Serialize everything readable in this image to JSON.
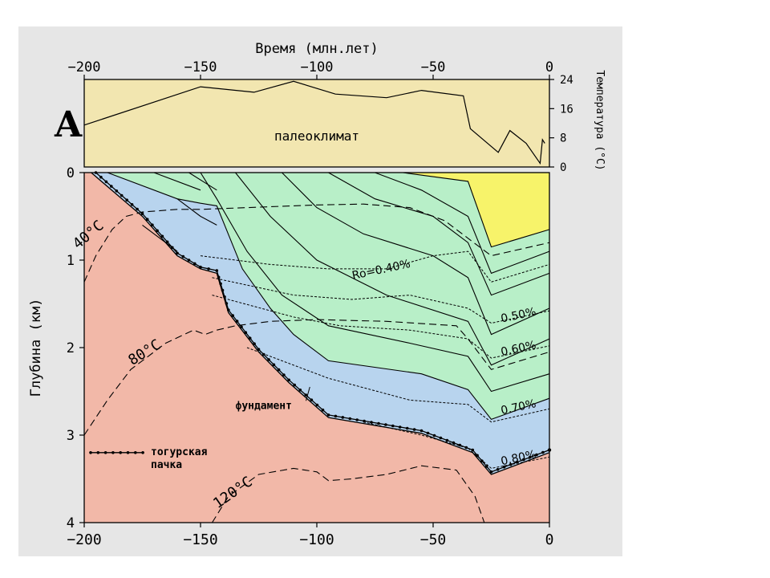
{
  "panel_letter": "A",
  "colors": {
    "frame_bg": "#e6e6e6",
    "paleoclimate_bg": "#f2e6b0",
    "basement": "#f2b8a8",
    "immature_zone": "#b8d4ee",
    "oil_window": "#b8efc8",
    "gas_zone": "#f7f36a",
    "line": "#000000"
  },
  "chart_data": [
    {
      "type": "line",
      "name": "paleoclimate",
      "title": "палеоклимат",
      "xlabel": "Время (млн.лет)",
      "ylabel": "Температура (°C)",
      "xlim": [
        -200,
        0
      ],
      "ylim": [
        0,
        24
      ],
      "x_ticks": [
        -200,
        -150,
        -100,
        -50,
        0
      ],
      "x_tick_labels": [
        "−200",
        "−150",
        "−100",
        "−50",
        "0"
      ],
      "y_ticks": [
        0,
        8,
        16,
        24
      ],
      "y_tick_labels": [
        "0",
        "8",
        "16",
        "24"
      ],
      "series": [
        {
          "points": [
            [
              -200,
              11.5
            ],
            [
              -150,
              22
            ],
            [
              -127,
              20.5
            ],
            [
              -110,
              23.5
            ],
            [
              -92,
              20
            ],
            [
              -70,
              19
            ],
            [
              -55,
              21
            ],
            [
              -37,
              19.5
            ],
            [
              -34,
              10.5
            ],
            [
              -22,
              4
            ],
            [
              -17,
              10
            ],
            [
              -10,
              6.5
            ],
            [
              -4,
              1
            ],
            [
              -3,
              7.5
            ],
            [
              -2,
              6.5
            ]
          ]
        }
      ]
    },
    {
      "type": "area",
      "name": "burial-history",
      "xlabel": "",
      "ylabel": "Глубина (км)",
      "xlim": [
        -200,
        0
      ],
      "ylim": [
        4,
        0
      ],
      "x_ticks": [
        -200,
        -150,
        -100,
        -50,
        0
      ],
      "x_tick_labels": [
        "−200",
        "−150",
        "−100",
        "−50",
        "0"
      ],
      "y_ticks": [
        0,
        1,
        2,
        3,
        4
      ],
      "y_tick_labels": [
        "0",
        "1",
        "2",
        "3",
        "4"
      ],
      "basement_surface": [
        [
          -197,
          0
        ],
        [
          -175,
          0.5
        ],
        [
          -160,
          0.95
        ],
        [
          -150,
          1.1
        ],
        [
          -143,
          1.15
        ],
        [
          -138,
          1.6
        ],
        [
          -125,
          2.05
        ],
        [
          -112,
          2.4
        ],
        [
          -95,
          2.8
        ],
        [
          -55,
          2.98
        ],
        [
          -33,
          3.2
        ],
        [
          -25,
          3.45
        ],
        [
          0,
          3.2
        ]
      ],
      "togur_member": [
        [
          -195,
          0
        ],
        [
          -175,
          0.47
        ],
        [
          -160,
          0.92
        ],
        [
          -150,
          1.08
        ],
        [
          -143,
          1.12
        ],
        [
          -138,
          1.57
        ],
        [
          -125,
          2.02
        ],
        [
          -112,
          2.37
        ],
        [
          -95,
          2.77
        ],
        [
          -55,
          2.95
        ],
        [
          -33,
          3.17
        ],
        [
          -25,
          3.42
        ],
        [
          0,
          3.17
        ]
      ],
      "immature_top": [
        [
          -190,
          0
        ],
        [
          -160,
          0.3
        ],
        [
          -150,
          0.35
        ],
        [
          -143,
          0.38
        ],
        [
          -132,
          1.1
        ],
        [
          -120,
          1.55
        ],
        [
          -110,
          1.85
        ],
        [
          -95,
          2.15
        ],
        [
          -55,
          2.3
        ],
        [
          -35,
          2.48
        ],
        [
          -25,
          2.82
        ],
        [
          0,
          2.58
        ]
      ],
      "gas_zone_base": [
        [
          -63,
          0
        ],
        [
          -35,
          0.1
        ],
        [
          -25,
          0.85
        ],
        [
          0,
          0.65
        ]
      ],
      "burial_isolines": [
        [
          [
            -170,
            0
          ],
          [
            -150,
            0.2
          ]
        ],
        [
          [
            -150,
            0
          ],
          [
            -143,
            0.3
          ],
          [
            -130,
            0.9
          ],
          [
            -115,
            1.4
          ],
          [
            -95,
            1.75
          ],
          [
            -60,
            1.95
          ],
          [
            -35,
            2.1
          ],
          [
            -25,
            2.5
          ],
          [
            0,
            2.3
          ]
        ],
        [
          [
            -135,
            0
          ],
          [
            -120,
            0.5
          ],
          [
            -100,
            1.0
          ],
          [
            -70,
            1.4
          ],
          [
            -35,
            1.7
          ],
          [
            -25,
            2.2
          ],
          [
            0,
            1.9
          ]
        ],
        [
          [
            -115,
            0
          ],
          [
            -100,
            0.4
          ],
          [
            -80,
            0.7
          ],
          [
            -50,
            0.95
          ],
          [
            -35,
            1.2
          ],
          [
            -25,
            1.85
          ],
          [
            0,
            1.55
          ]
        ],
        [
          [
            -95,
            0
          ],
          [
            -75,
            0.3
          ],
          [
            -50,
            0.5
          ],
          [
            -35,
            0.8
          ],
          [
            -25,
            1.4
          ],
          [
            0,
            1.15
          ]
        ],
        [
          [
            -75,
            0
          ],
          [
            -55,
            0.2
          ],
          [
            -35,
            0.5
          ],
          [
            -25,
            1.15
          ],
          [
            0,
            0.9
          ]
        ]
      ],
      "basement_isolines": [
        [
          [
            -155,
            0
          ],
          [
            -143,
            0.2
          ]
        ],
        [
          [
            -160,
            0.3
          ],
          [
            -150,
            0.5
          ],
          [
            -143,
            0.6
          ]
        ],
        [
          [
            -175,
            0.6
          ],
          [
            -160,
            0.9
          ]
        ]
      ],
      "ro_isolines": [
        {
          "label": "Ro=0.40%",
          "label_at": [
            -72,
            1.15
          ],
          "points": [
            [
              -150,
              0.95
            ],
            [
              -120,
              1.05
            ],
            [
              -95,
              1.1
            ],
            [
              -70,
              1.1
            ],
            [
              -50,
              0.95
            ],
            [
              -35,
              0.9
            ],
            [
              -25,
              1.25
            ],
            [
              0,
              1.05
            ]
          ]
        },
        {
          "label": "0.50%",
          "label_at": [
            -13,
            1.67
          ],
          "points": [
            [
              -145,
              1.2
            ],
            [
              -110,
              1.4
            ],
            [
              -85,
              1.45
            ],
            [
              -60,
              1.4
            ],
            [
              -35,
              1.55
            ],
            [
              -25,
              1.72
            ],
            [
              0,
              1.58
            ]
          ]
        },
        {
          "label": "0.60%",
          "label_at": [
            -13,
            2.05
          ],
          "points": [
            [
              -145,
              1.4
            ],
            [
              -110,
              1.65
            ],
            [
              -90,
              1.75
            ],
            [
              -60,
              1.8
            ],
            [
              -35,
              1.9
            ],
            [
              -25,
              2.12
            ],
            [
              0,
              1.98
            ]
          ]
        },
        {
          "label": "0.70%",
          "label_at": [
            -13,
            2.72
          ],
          "points": [
            [
              -130,
              2.0
            ],
            [
              -95,
              2.35
            ],
            [
              -60,
              2.6
            ],
            [
              -35,
              2.65
            ],
            [
              -25,
              2.85
            ],
            [
              0,
              2.7
            ]
          ]
        },
        {
          "label": "0.80%",
          "label_at": [
            -13,
            3.3
          ],
          "points": [
            [
              -80,
              2.85
            ],
            [
              -55,
              3.0
            ],
            [
              -35,
              3.15
            ],
            [
              -25,
              3.38
            ],
            [
              0,
              3.25
            ]
          ]
        }
      ],
      "temp_isotherms": [
        {
          "label": "40°C",
          "label_at": [
            -197,
            0.75
          ],
          "label_rotate": -40,
          "points": [
            [
              -200,
              1.25
            ],
            [
              -195,
              0.95
            ],
            [
              -188,
              0.65
            ],
            [
              -182,
              0.5
            ],
            [
              -175,
              0.45
            ],
            [
              -160,
              0.42
            ],
            [
              -150,
              0.42
            ],
            [
              -130,
              0.4
            ],
            [
              -100,
              0.37
            ],
            [
              -80,
              0.36
            ],
            [
              -60,
              0.4
            ],
            [
              -45,
              0.55
            ],
            [
              -35,
              0.75
            ],
            [
              -25,
              0.95
            ],
            [
              0,
              0.8
            ]
          ]
        },
        {
          "label": "80°C",
          "label_at": [
            -173,
            2.1
          ],
          "label_rotate": -32,
          "points": [
            [
              -200,
              3.0
            ],
            [
              -190,
              2.6
            ],
            [
              -180,
              2.25
            ],
            [
              -165,
              1.95
            ],
            [
              -153,
              1.8
            ],
            [
              -148,
              1.85
            ],
            [
              -143,
              1.8
            ],
            [
              -135,
              1.75
            ],
            [
              -120,
              1.7
            ],
            [
              -100,
              1.68
            ],
            [
              -70,
              1.7
            ],
            [
              -40,
              1.75
            ],
            [
              -35,
              1.9
            ],
            [
              -25,
              2.25
            ],
            [
              0,
              2.05
            ]
          ]
        },
        {
          "label": "120°C",
          "label_at": [
            -135,
            3.7
          ],
          "label_rotate": -35,
          "points": [
            [
              -145,
              4.0
            ],
            [
              -138,
              3.7
            ],
            [
              -125,
              3.45
            ],
            [
              -110,
              3.38
            ],
            [
              -100,
              3.42
            ],
            [
              -95,
              3.52
            ],
            [
              -85,
              3.5
            ],
            [
              -70,
              3.45
            ],
            [
              -55,
              3.35
            ],
            [
              -40,
              3.4
            ],
            [
              -32,
              3.7
            ],
            [
              -28,
              4.0
            ]
          ]
        }
      ],
      "annotations": {
        "fundament_label": "фундамент",
        "fundament_label_at": [
          -135,
          2.7
        ],
        "fundament_arrow_to": [
          -103,
          2.45
        ],
        "legend_label_line1": "тогурская",
        "legend_label_line2": "пачка",
        "legend_position": "bottom-left"
      }
    }
  ]
}
